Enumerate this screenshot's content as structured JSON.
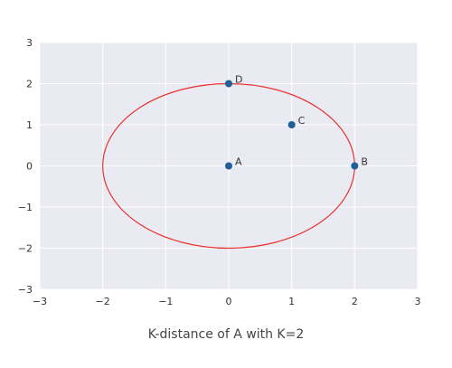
{
  "caption": "K-distance of A with K=2",
  "colors": {
    "plot_background": "#eaeaf2",
    "grid": "#ffffff",
    "point": "#1f5f9a",
    "circle": "#e8332e",
    "tick_text": "#333333"
  },
  "chart_data": {
    "type": "scatter",
    "xlim": [
      -3,
      3
    ],
    "ylim": [
      -3,
      3
    ],
    "grid": true,
    "x_ticks": [
      -3,
      -2,
      -1,
      0,
      1,
      2,
      3
    ],
    "y_ticks": [
      3,
      2,
      1,
      0,
      -1,
      -2,
      -3
    ],
    "x_tick_labels": [
      "−3",
      "−2",
      "−1",
      "0",
      "1",
      "2",
      "3"
    ],
    "y_tick_labels": [
      "3",
      "2",
      "1",
      "0",
      "−1",
      "−2",
      "−3"
    ],
    "points": [
      {
        "label": "A",
        "x": 0,
        "y": 0
      },
      {
        "label": "B",
        "x": 2,
        "y": 0
      },
      {
        "label": "C",
        "x": 1,
        "y": 1
      },
      {
        "label": "D",
        "x": 0,
        "y": 2
      }
    ],
    "circle": {
      "center": [
        0,
        0
      ],
      "radius": 2
    }
  }
}
